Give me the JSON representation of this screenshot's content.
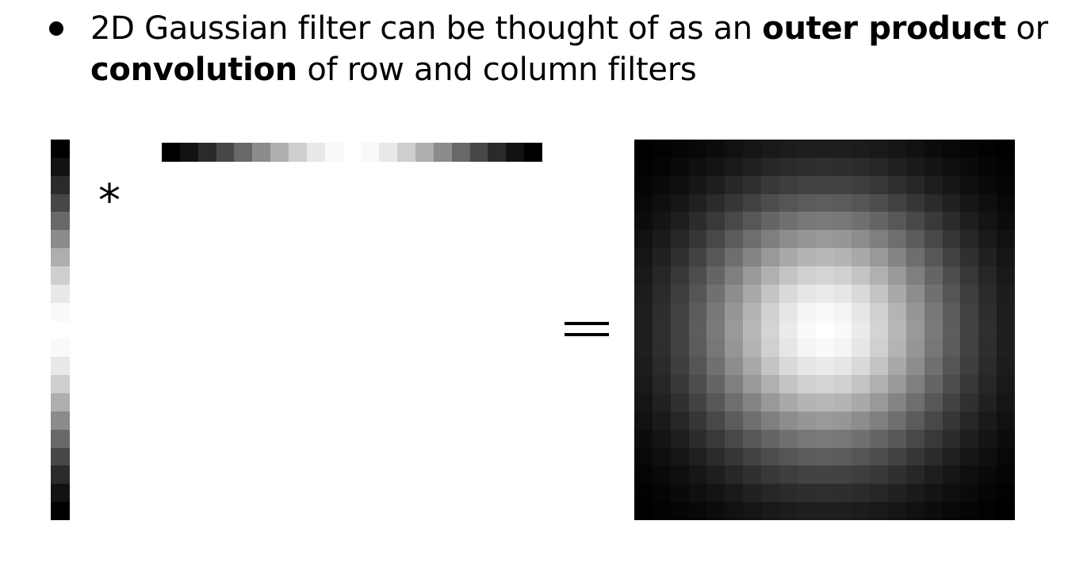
{
  "bullet": {
    "text_1": "2D Gaussian filter can be thought of as an ",
    "bold_1": "outer product",
    "text_2": " or ",
    "bold_2": "convolution",
    "text_3": " of row and column filters"
  },
  "operators": {
    "convolve": "*",
    "equals": "="
  },
  "filter": {
    "size": 21,
    "sigma_cells": 5
  }
}
